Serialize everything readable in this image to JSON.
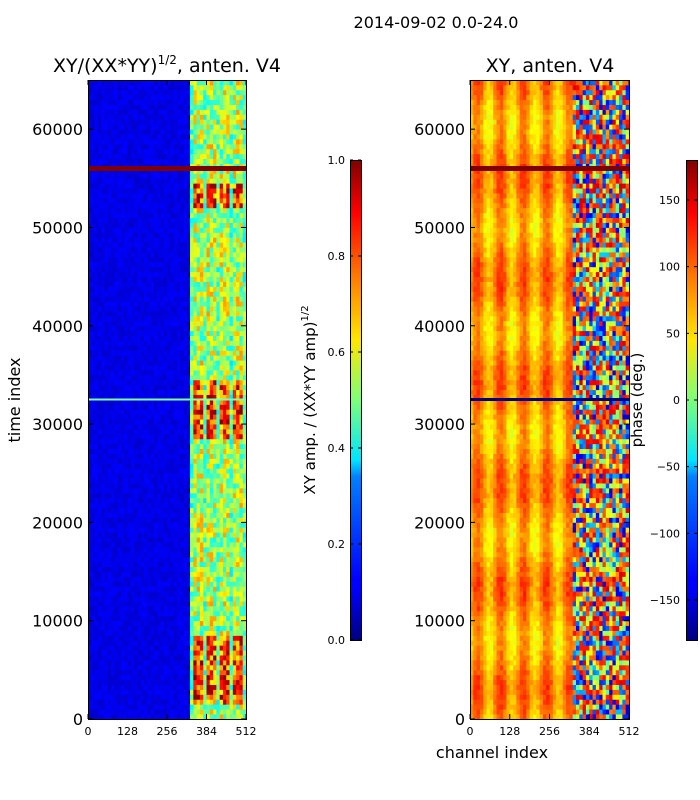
{
  "figure_title": "2014-09-02 0.0-24.0",
  "chart_data": [
    {
      "type": "heatmap",
      "title_text": "XY/(XX*YY)",
      "title_exponent": "1/2",
      "title_suffix": ", anten. V4",
      "xlabel": "",
      "ylabel": "time index",
      "xlim": [
        0,
        512
      ],
      "ylim": [
        0,
        65000
      ],
      "xticks": [
        0,
        128,
        256,
        384,
        512
      ],
      "yticks": [
        0,
        10000,
        20000,
        30000,
        40000,
        50000,
        60000
      ],
      "colormap": "jet",
      "colorbar": {
        "label_text": "XY amp. / (XX*YY amp)",
        "label_exponent": "1/2",
        "range": [
          0.0,
          1.0
        ],
        "ticks": [
          "0.0",
          "0.2",
          "0.4",
          "0.6",
          "0.8",
          "1.0"
        ]
      },
      "features": {
        "low_region_channels": [
          0,
          330
        ],
        "low_level": 0.1,
        "high_region_channels": [
          330,
          512
        ],
        "high_level_mean": 0.5,
        "strong_bands_time": [
          [
            52000,
            54500
          ],
          [
            28500,
            34500
          ],
          [
            1500,
            8500
          ]
        ],
        "saturated_row_time": 56000,
        "cyan_row_time": 32500
      }
    },
    {
      "type": "heatmap",
      "title_text": "XY, anten. V4",
      "xlabel": "channel index",
      "ylabel": "",
      "xlim": [
        0,
        512
      ],
      "ylim": [
        0,
        65000
      ],
      "xticks": [
        0,
        128,
        256,
        384,
        512
      ],
      "yticks": [
        0,
        10000,
        20000,
        30000,
        40000,
        50000,
        60000
      ],
      "colormap": "jet",
      "colorbar": {
        "label_text": "phase (deg.)",
        "range": [
          -180,
          180
        ],
        "ticks": [
          "−150",
          "−100",
          "−50",
          "0",
          "50",
          "100",
          "150"
        ]
      },
      "features": {
        "smooth_region_channels": [
          0,
          330
        ],
        "smooth_phase_range_deg": [
          80,
          160
        ],
        "noisy_region_channels": [
          330,
          512
        ],
        "saturated_row_time": 56000,
        "dark_row_time": 32500
      }
    }
  ]
}
